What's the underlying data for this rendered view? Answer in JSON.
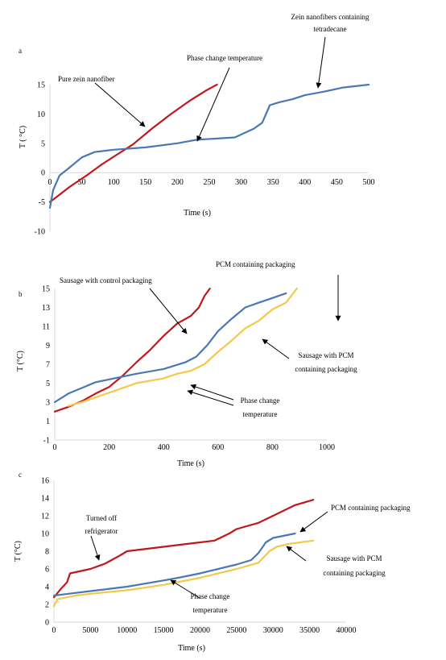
{
  "colors": {
    "red": "#c0181c",
    "blue": "#4a78b4",
    "yellow": "#f5c84a",
    "axis": "#d9d9d9",
    "text": "#000000",
    "arrow": "#000000"
  },
  "chart_data": [
    {
      "type": "line",
      "panel_label": "a",
      "xlabel": "Time (s)",
      "ylabel": "T ( °C)",
      "xlim": [
        0,
        500
      ],
      "ylim": [
        -10,
        15
      ],
      "xticks": [
        0,
        50,
        100,
        150,
        200,
        250,
        300,
        350,
        400,
        450,
        500
      ],
      "yticks": [
        -10,
        -5,
        0,
        5,
        10,
        15
      ],
      "grid": false,
      "series": [
        {
          "color": "red",
          "x": [
            0,
            10,
            30,
            60,
            80,
            100,
            130,
            160,
            190,
            220,
            245,
            262
          ],
          "y": [
            -5,
            -4.2,
            -2.5,
            -0.3,
            1.3,
            2.7,
            4.8,
            7.5,
            10,
            12.3,
            14,
            15
          ]
        },
        {
          "color": "blue",
          "x": [
            0,
            5,
            15,
            30,
            50,
            70,
            100,
            150,
            200,
            230,
            260,
            290,
            320,
            333,
            345,
            360,
            380,
            400,
            430,
            460,
            500
          ],
          "y": [
            -6,
            -3,
            -0.5,
            0.8,
            2.6,
            3.5,
            3.9,
            4.3,
            5,
            5.6,
            5.8,
            6,
            7.5,
            8.5,
            11.5,
            12,
            12.5,
            13.2,
            13.8,
            14.5,
            15
          ]
        }
      ],
      "annotations": [
        {
          "id": "pure",
          "text": "Pure zein nanofiber"
        },
        {
          "id": "phase",
          "text": "Phase change temperature"
        },
        {
          "id": "zein1",
          "text": "Zein nanofibers containing"
        },
        {
          "id": "zein2",
          "text": "tetradecane"
        }
      ]
    },
    {
      "type": "line",
      "panel_label": "b",
      "xlabel": "Time (s)",
      "ylabel": "T (°C)",
      "xlim": [
        0,
        1000
      ],
      "ylim": [
        -1,
        15
      ],
      "xticks": [
        0,
        200,
        400,
        600,
        800,
        1000
      ],
      "yticks": [
        -1,
        1,
        3,
        5,
        7,
        9,
        11,
        13,
        15
      ],
      "grid": false,
      "series": [
        {
          "color": "red",
          "x": [
            0,
            50,
            100,
            150,
            200,
            250,
            300,
            350,
            400,
            450,
            500,
            530,
            550,
            570
          ],
          "y": [
            2,
            2.5,
            3.1,
            3.9,
            4.6,
            5.8,
            7.2,
            8.5,
            10,
            11.3,
            12.1,
            13,
            14.2,
            15
          ]
        },
        {
          "color": "blue",
          "x": [
            0,
            50,
            100,
            150,
            200,
            300,
            400,
            480,
            520,
            560,
            600,
            650,
            700,
            750,
            800,
            850
          ],
          "y": [
            3,
            3.9,
            4.5,
            5.1,
            5.4,
            6,
            6.5,
            7.2,
            7.8,
            9,
            10.5,
            11.8,
            13,
            13.5,
            14,
            14.5
          ]
        },
        {
          "color": "yellow",
          "x": [
            50,
            100,
            150,
            200,
            250,
            300,
            400,
            450,
            500,
            550,
            600,
            650,
            700,
            750,
            800,
            850,
            890
          ],
          "y": [
            2.6,
            3,
            3.5,
            4,
            4.5,
            5,
            5.5,
            6,
            6.3,
            7,
            8.3,
            9.5,
            10.8,
            11.6,
            12.8,
            13.5,
            15
          ]
        }
      ],
      "annotations": [
        {
          "id": "control",
          "text": "Sausage with control packaging"
        },
        {
          "id": "pcm",
          "text": "PCM containing packaging"
        },
        {
          "id": "sausage1",
          "text": "Sausage with PCM"
        },
        {
          "id": "sausage2",
          "text": "containing packaging"
        },
        {
          "id": "phase1",
          "text": "Phase change"
        },
        {
          "id": "phase2",
          "text": "temperature"
        }
      ]
    },
    {
      "type": "line",
      "panel_label": "c",
      "xlabel": "Time (s)",
      "ylabel": "T (°C)",
      "xlim": [
        0,
        40000
      ],
      "ylim": [
        0,
        16
      ],
      "xticks": [
        0,
        5000,
        10000,
        15000,
        20000,
        25000,
        30000,
        35000,
        40000
      ],
      "yticks": [
        0,
        2,
        4,
        6,
        8,
        10,
        12,
        14,
        16
      ],
      "grid": false,
      "series": [
        {
          "color": "red",
          "x": [
            0,
            1000,
            1800,
            2200,
            5000,
            7000,
            9000,
            10000,
            15000,
            20000,
            22000,
            24000,
            25000,
            28000,
            30000,
            33000,
            35500
          ],
          "y": [
            2.8,
            3.8,
            4.5,
            5.5,
            6,
            6.6,
            7.5,
            8,
            8.5,
            9,
            9.2,
            10,
            10.5,
            11.2,
            12,
            13.2,
            13.8
          ]
        },
        {
          "color": "blue",
          "x": [
            0,
            2000,
            5000,
            10000,
            15000,
            17000,
            20000,
            25000,
            27000,
            28000,
            29000,
            30000,
            33000
          ],
          "y": [
            3,
            3.2,
            3.5,
            4,
            4.7,
            5,
            5.5,
            6.5,
            7,
            7.8,
            9,
            9.5,
            10
          ]
        },
        {
          "color": "yellow",
          "x": [
            0,
            500,
            3000,
            5000,
            10000,
            15000,
            20000,
            25000,
            28000,
            29500,
            30500,
            32000,
            35500
          ],
          "y": [
            1.8,
            2.6,
            3,
            3.2,
            3.6,
            4.2,
            5,
            6,
            6.7,
            8,
            8.5,
            8.8,
            9.2
          ]
        }
      ],
      "annotations": [
        {
          "id": "turned1",
          "text": "Turned off"
        },
        {
          "id": "turned2",
          "text": "refrigerator"
        },
        {
          "id": "pcm",
          "text": "PCM containing packaging"
        },
        {
          "id": "sausage1",
          "text": "Sausage with PCM"
        },
        {
          "id": "sausage2",
          "text": "containing packaging"
        },
        {
          "id": "phase1",
          "text": "Phase change"
        },
        {
          "id": "phase2",
          "text": "temperature"
        }
      ]
    }
  ]
}
